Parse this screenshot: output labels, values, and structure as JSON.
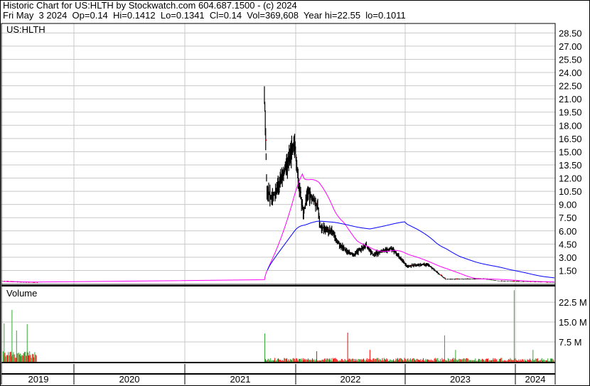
{
  "header": {
    "title": "Historic Chart for US:HLTH by Stockwatch.com 604.687.1500 - (c) 2024",
    "quote": "Fri May  3 2024  Op=0.14  Hi=0.1412  Lo=0.1341  Cl=0.14  Vol=369,608  Year hi=22.55  lo=0.1011"
  },
  "chart_data": [
    {
      "type": "line",
      "panel": "price",
      "title": "US:HLTH",
      "ylim": [
        0,
        29.5
      ],
      "y_ticks": [
        "28.50",
        "27.00",
        "25.50",
        "24.00",
        "22.50",
        "21.00",
        "19.50",
        "18.00",
        "16.50",
        "15.00",
        "13.50",
        "12.00",
        "10.50",
        "9.00",
        "7.50",
        "6.00",
        "4.50",
        "3.00",
        "1.50"
      ],
      "x_ticks": [
        "2019",
        "2020",
        "2021",
        "2022",
        "2023",
        "2024"
      ],
      "grid": true,
      "series": [
        {
          "style": "ohlc bars",
          "color": "#000000",
          "points": [
            [
              "2019-05-10",
              0.25
            ],
            [
              "2019-06-15",
              0.2
            ],
            [
              "2019-07-20",
              0.15
            ],
            [
              "2019-09-01",
              0.12
            ],
            [
              "2021-09-20",
              22.4
            ],
            [
              "2021-09-28",
              10.8
            ],
            [
              "2021-10-15",
              9.6
            ],
            [
              "2021-11-20",
              12.4
            ],
            [
              "2021-12-28",
              16.0
            ],
            [
              "2022-01-10",
              11.6
            ],
            [
              "2022-01-27",
              8.0
            ],
            [
              "2022-02-10",
              10.4
            ],
            [
              "2022-03-15",
              8.8
            ],
            [
              "2022-03-22",
              6.4
            ],
            [
              "2022-04-30",
              6.0
            ],
            [
              "2022-05-25",
              4.4
            ],
            [
              "2022-07-10",
              3.2
            ],
            [
              "2022-08-20",
              4.4
            ],
            [
              "2022-09-12",
              3.3
            ],
            [
              "2022-11-10",
              4.0
            ],
            [
              "2022-12-05",
              3.2
            ],
            [
              "2023-01-01",
              2.0
            ],
            [
              "2023-03-12",
              2.2
            ],
            [
              "2023-04-18",
              1.1
            ],
            [
              "2023-05-10",
              0.5
            ],
            [
              "2023-09-15",
              0.55
            ],
            [
              "2023-10-30",
              0.3
            ],
            [
              "2024-05-03",
              0.14
            ]
          ]
        },
        {
          "style": "short moving average",
          "color": "#ff00ff"
        },
        {
          "style": "long moving average",
          "color": "#0000ff"
        }
      ]
    },
    {
      "type": "bar",
      "panel": "volume",
      "title": "Volume",
      "y_ticks": [
        "22.5 M",
        "15.0 M",
        "7.5 M"
      ],
      "ylim": [
        0,
        30
      ],
      "unit": "millions",
      "up_color": "#33aa33",
      "down_color": "#ff0000",
      "spikes": [
        [
          "2019-05-15",
          14.5,
          "up"
        ],
        [
          "2019-06-10",
          19.6,
          "up"
        ],
        [
          "2019-06-25",
          11.8,
          "up"
        ],
        [
          "2019-07-30",
          14.2,
          "up"
        ],
        [
          "2021-09-20",
          10.7,
          "up"
        ],
        [
          "2022-03-10",
          4.0,
          "down"
        ],
        [
          "2022-06-20",
          11.0,
          "down"
        ],
        [
          "2022-09-01",
          4.5,
          "down"
        ],
        [
          "2023-05-05",
          10.0,
          "up"
        ],
        [
          "2023-06-10",
          4.5,
          "up"
        ],
        [
          "2023-12-20",
          27.0,
          "up"
        ],
        [
          "2024-02-20",
          4.5,
          "up"
        ]
      ]
    }
  ]
}
